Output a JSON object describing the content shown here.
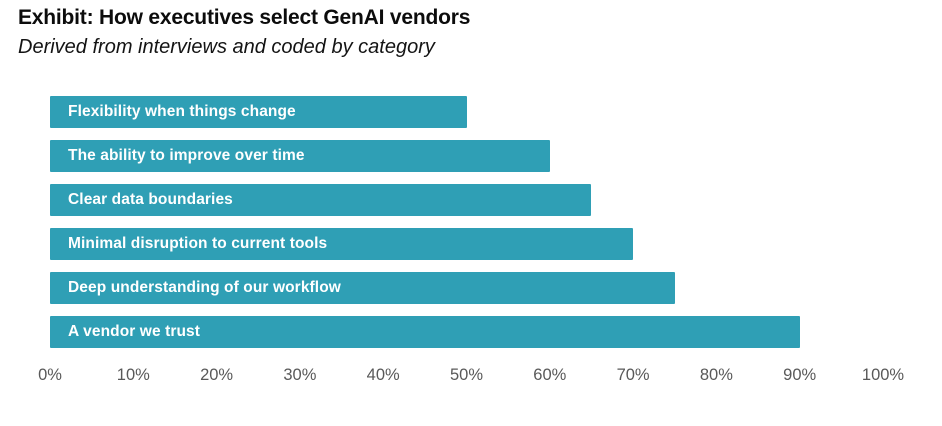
{
  "chart_data": {
    "type": "bar",
    "orientation": "horizontal",
    "title": "Exhibit: How executives select GenAI vendors",
    "subtitle": "Derived from interviews and coded by category",
    "categories": [
      "Flexibility when things change",
      "The ability to improve over time",
      "Clear data boundaries",
      "Minimal disruption to current tools",
      "Deep understanding of our workflow",
      "A vendor we trust"
    ],
    "values": [
      50,
      60,
      65,
      70,
      75,
      90
    ],
    "unit": "%",
    "xlabel": "",
    "ylabel": "",
    "xlim": [
      0,
      100
    ],
    "x_ticks": [
      "0%",
      "10%",
      "20%",
      "30%",
      "40%",
      "50%",
      "60%",
      "70%",
      "80%",
      "90%",
      "100%"
    ],
    "grid": false,
    "legend": false,
    "value_labels_inside_bars": true,
    "colors": {
      "bar": "#2f9fb5",
      "bar_label": "#ffffff",
      "title": "#0c0c0c",
      "subtitle": "#141414",
      "axis_tick": "#595959",
      "background": "#ffffff"
    }
  }
}
